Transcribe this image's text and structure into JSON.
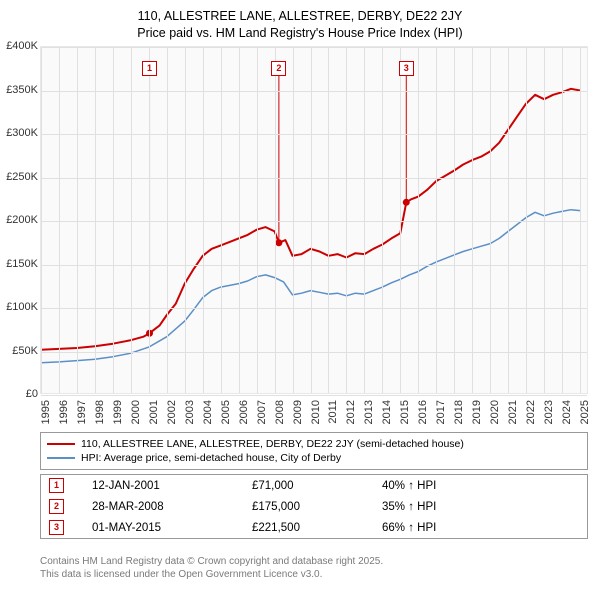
{
  "title_line1": "110, ALLESTREE LANE, ALLESTREE, DERBY, DE22 2JY",
  "title_line2": "Price paid vs. HM Land Registry's House Price Index (HPI)",
  "chart": {
    "type": "line",
    "background_color": "#fafafa",
    "grid_color": "#e0e0e0",
    "xlim": [
      1995,
      2025.5
    ],
    "ylim": [
      0,
      400000
    ],
    "ytick_step": 50000,
    "yticks": [
      "£0",
      "£50K",
      "£100K",
      "£150K",
      "£200K",
      "£250K",
      "£300K",
      "£350K",
      "£400K"
    ],
    "xticks": [
      1995,
      1996,
      1997,
      1998,
      1999,
      2000,
      2001,
      2002,
      2003,
      2004,
      2005,
      2006,
      2007,
      2008,
      2009,
      2010,
      2011,
      2012,
      2013,
      2014,
      2015,
      2016,
      2017,
      2018,
      2019,
      2020,
      2021,
      2022,
      2023,
      2024,
      2025
    ],
    "series": [
      {
        "name": "property",
        "color": "#cc0000",
        "width": 2,
        "data": [
          [
            1995,
            52000
          ],
          [
            1996,
            53000
          ],
          [
            1997,
            54000
          ],
          [
            1998,
            56000
          ],
          [
            1999,
            59000
          ],
          [
            2000,
            63000
          ],
          [
            2000.7,
            67000
          ],
          [
            2001.04,
            71000
          ],
          [
            2001.6,
            80000
          ],
          [
            2002,
            92000
          ],
          [
            2002.5,
            105000
          ],
          [
            2003,
            128000
          ],
          [
            2003.5,
            145000
          ],
          [
            2004,
            160000
          ],
          [
            2004.5,
            168000
          ],
          [
            2005,
            172000
          ],
          [
            2005.5,
            176000
          ],
          [
            2006,
            180000
          ],
          [
            2006.5,
            184000
          ],
          [
            2007,
            190000
          ],
          [
            2007.5,
            193000
          ],
          [
            2008,
            188000
          ],
          [
            2008.24,
            175000
          ],
          [
            2008.6,
            178000
          ],
          [
            2009,
            160000
          ],
          [
            2009.5,
            162000
          ],
          [
            2010,
            168000
          ],
          [
            2010.5,
            165000
          ],
          [
            2011,
            160000
          ],
          [
            2011.5,
            162000
          ],
          [
            2012,
            158000
          ],
          [
            2012.5,
            163000
          ],
          [
            2013,
            162000
          ],
          [
            2013.5,
            168000
          ],
          [
            2014,
            173000
          ],
          [
            2014.5,
            180000
          ],
          [
            2015,
            186000
          ],
          [
            2015.33,
            221500
          ],
          [
            2015.6,
            225000
          ],
          [
            2016,
            228000
          ],
          [
            2016.5,
            236000
          ],
          [
            2017,
            246000
          ],
          [
            2017.5,
            252000
          ],
          [
            2018,
            258000
          ],
          [
            2018.5,
            265000
          ],
          [
            2019,
            270000
          ],
          [
            2019.5,
            274000
          ],
          [
            2020,
            280000
          ],
          [
            2020.5,
            290000
          ],
          [
            2021,
            305000
          ],
          [
            2021.5,
            320000
          ],
          [
            2022,
            335000
          ],
          [
            2022.5,
            345000
          ],
          [
            2023,
            340000
          ],
          [
            2023.5,
            345000
          ],
          [
            2024,
            348000
          ],
          [
            2024.5,
            352000
          ],
          [
            2025,
            350000
          ]
        ]
      },
      {
        "name": "hpi",
        "color": "#5b8fc7",
        "width": 1.5,
        "data": [
          [
            1995,
            37000
          ],
          [
            1996,
            38000
          ],
          [
            1997,
            39500
          ],
          [
            1998,
            41000
          ],
          [
            1999,
            44000
          ],
          [
            2000,
            48000
          ],
          [
            2001,
            55000
          ],
          [
            2002,
            67000
          ],
          [
            2003,
            85000
          ],
          [
            2003.5,
            98000
          ],
          [
            2004,
            112000
          ],
          [
            2004.5,
            120000
          ],
          [
            2005,
            124000
          ],
          [
            2005.5,
            126000
          ],
          [
            2006,
            128000
          ],
          [
            2006.5,
            131000
          ],
          [
            2007,
            136000
          ],
          [
            2007.5,
            138000
          ],
          [
            2008,
            135000
          ],
          [
            2008.5,
            130000
          ],
          [
            2009,
            115000
          ],
          [
            2009.5,
            117000
          ],
          [
            2010,
            120000
          ],
          [
            2010.5,
            118000
          ],
          [
            2011,
            116000
          ],
          [
            2011.5,
            117000
          ],
          [
            2012,
            114000
          ],
          [
            2012.5,
            117000
          ],
          [
            2013,
            116000
          ],
          [
            2013.5,
            120000
          ],
          [
            2014,
            124000
          ],
          [
            2014.5,
            129000
          ],
          [
            2015,
            133000
          ],
          [
            2015.5,
            138000
          ],
          [
            2016,
            142000
          ],
          [
            2016.5,
            148000
          ],
          [
            2017,
            153000
          ],
          [
            2017.5,
            157000
          ],
          [
            2018,
            161000
          ],
          [
            2018.5,
            165000
          ],
          [
            2019,
            168000
          ],
          [
            2019.5,
            171000
          ],
          [
            2020,
            174000
          ],
          [
            2020.5,
            180000
          ],
          [
            2021,
            188000
          ],
          [
            2021.5,
            196000
          ],
          [
            2022,
            204000
          ],
          [
            2022.5,
            210000
          ],
          [
            2023,
            206000
          ],
          [
            2023.5,
            209000
          ],
          [
            2024,
            211000
          ],
          [
            2024.5,
            213000
          ],
          [
            2025,
            212000
          ]
        ]
      }
    ],
    "transaction_markers": [
      {
        "n": "1",
        "x": 2001.04,
        "y": 71000,
        "box_top": 14
      },
      {
        "n": "2",
        "x": 2008.24,
        "y": 175000,
        "box_top": 14
      },
      {
        "n": "3",
        "x": 2015.33,
        "y": 221500,
        "box_top": 14
      }
    ]
  },
  "legend": [
    {
      "color": "#cc0000",
      "label": "110, ALLESTREE LANE, ALLESTREE, DERBY, DE22 2JY (semi-detached house)"
    },
    {
      "color": "#5b8fc7",
      "label": "HPI: Average price, semi-detached house, City of Derby"
    }
  ],
  "transactions": [
    {
      "n": "1",
      "date": "12-JAN-2001",
      "price": "£71,000",
      "diff": "40% ↑ HPI"
    },
    {
      "n": "2",
      "date": "28-MAR-2008",
      "price": "£175,000",
      "diff": "35% ↑ HPI"
    },
    {
      "n": "3",
      "date": "01-MAY-2015",
      "price": "£221,500",
      "diff": "66% ↑ HPI"
    }
  ],
  "footer_line1": "Contains HM Land Registry data © Crown copyright and database right 2025.",
  "footer_line2": "This data is licensed under the Open Government Licence v3.0.",
  "colors": {
    "marker_border": "#cc0000",
    "text": "#333333",
    "footer_text": "#7a7a7a"
  }
}
